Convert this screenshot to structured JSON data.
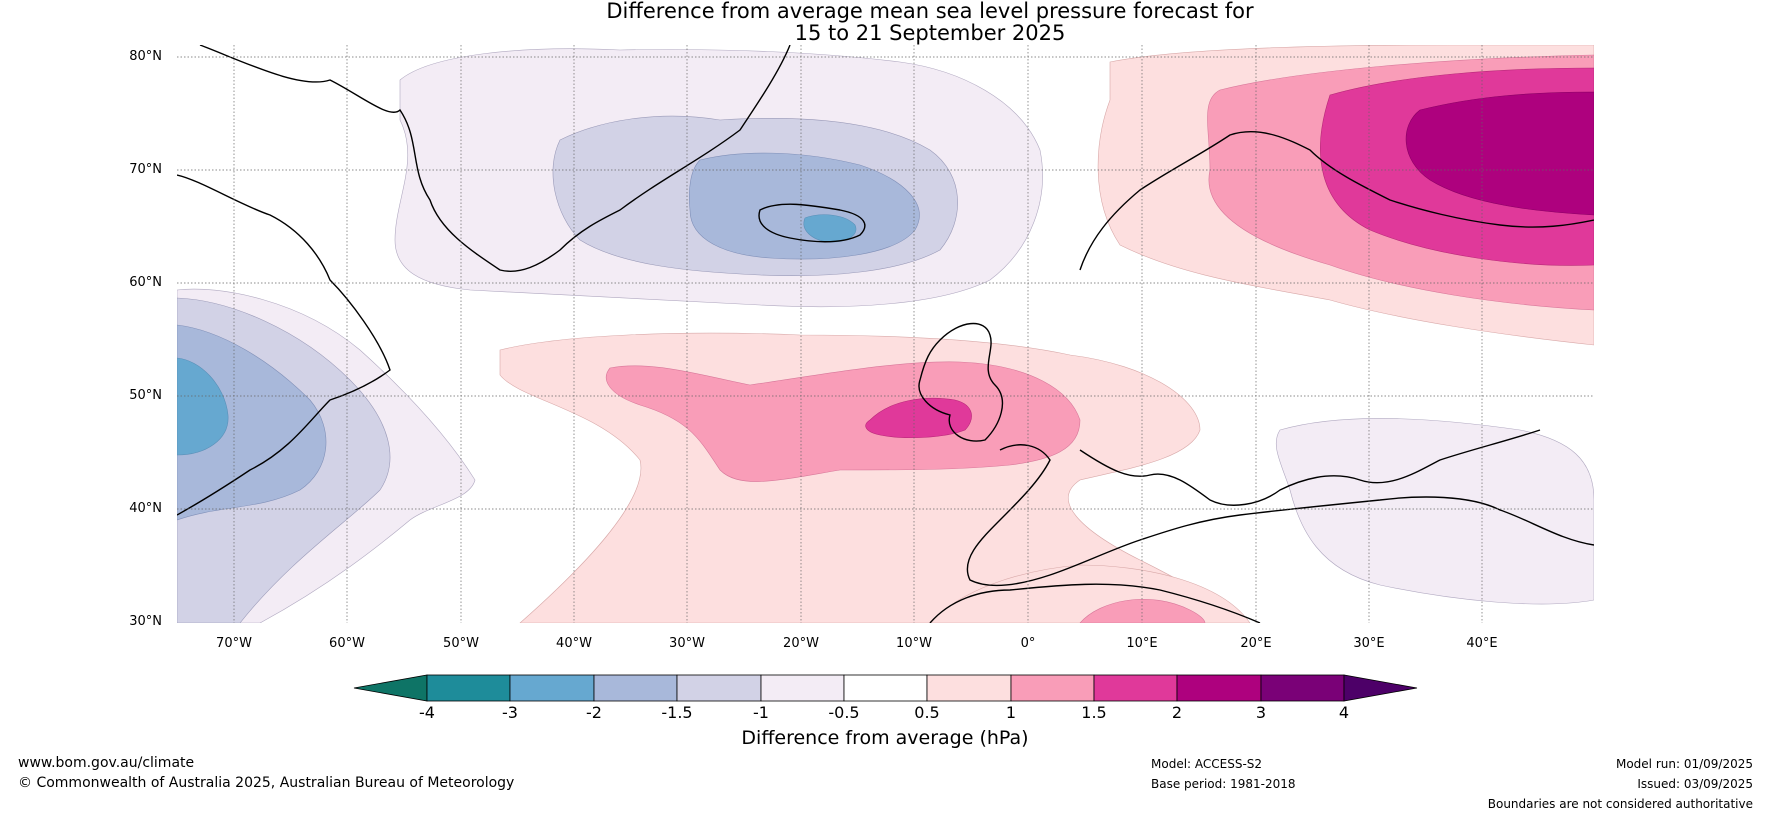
{
  "header": {
    "title_line1": "Difference from average mean sea level pressure forecast for",
    "title_line2": "15 to 21 September 2025"
  },
  "map": {
    "latitude_labels": [
      "80°N",
      "70°N",
      "60°N",
      "50°N",
      "40°N",
      "30°N"
    ],
    "longitude_labels": [
      "70°W",
      "60°W",
      "50°W",
      "40°W",
      "30°W",
      "20°W",
      "10°W",
      "0°",
      "10°E",
      "20°E",
      "30°E",
      "40°E"
    ]
  },
  "colorbar": {
    "title": "Difference from average (hPa)",
    "tick_labels": [
      "-4",
      "-3",
      "-2",
      "-1.5",
      "-1",
      "-0.5",
      "0.5",
      "1",
      "1.5",
      "2",
      "3",
      "4"
    ],
    "colors": [
      "#0e7466",
      "#1e8c9a",
      "#66a8d0",
      "#a8b8da",
      "#d2d2e6",
      "#f3ecf5",
      "#ffffff",
      "#fddfdf",
      "#f99db8",
      "#e0399a",
      "#ae017e",
      "#7a0177",
      "#4d0068"
    ]
  },
  "footer": {
    "website": "www.bom.gov.au/climate",
    "copyright": "© Commonwealth of Australia 2025, Australian Bureau of Meteorology",
    "model": "Model: ACCESS-S2",
    "base_period": "Base period: 1981-2018",
    "model_run": "Model run: 01/09/2025",
    "issued": "Issued: 03/09/2025",
    "disclaimer": "Boundaries are not considered authoritative"
  }
}
